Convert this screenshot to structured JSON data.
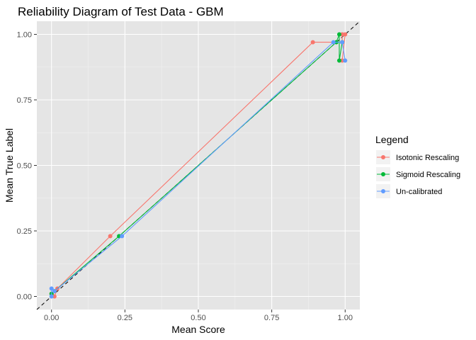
{
  "chart_data": {
    "type": "line",
    "title": "Reliability Diagram of Test Data - GBM",
    "xlabel": "Mean Score",
    "ylabel": "Mean True Label",
    "xlim": [
      -0.05,
      1.05
    ],
    "ylim": [
      -0.05,
      1.05
    ],
    "x_ticks": [
      0.0,
      0.25,
      0.5,
      0.75,
      1.0
    ],
    "x_tick_labels": [
      "0.00",
      "0.25",
      "0.50",
      "0.75",
      "1.00"
    ],
    "y_ticks": [
      0.0,
      0.25,
      0.5,
      0.75,
      1.0
    ],
    "y_tick_labels": [
      "0.00",
      "0.25",
      "0.50",
      "0.75",
      "1.00"
    ],
    "grid": true,
    "background": "#e5e5e5",
    "reference_line": {
      "style": "dashed",
      "color": "#000000",
      "from": [
        -0.05,
        -0.05
      ],
      "to": [
        1.05,
        1.05
      ]
    },
    "legend": {
      "title": "Legend",
      "position": "right"
    },
    "series": [
      {
        "name": "Isotonic Rescaling",
        "color": "#f8766d",
        "points": [
          [
            0.0,
            0.01
          ],
          [
            0.01,
            0.0
          ],
          [
            0.02,
            0.03
          ],
          [
            0.2,
            0.23
          ],
          [
            0.89,
            0.97
          ],
          [
            0.99,
            0.97
          ],
          [
            0.99,
            1.0
          ],
          [
            1.0,
            1.0
          ],
          [
            0.99,
            0.9
          ]
        ]
      },
      {
        "name": "Sigmoid Rescaling",
        "color": "#00ba38",
        "points": [
          [
            0.0,
            0.01
          ],
          [
            0.01,
            0.02
          ],
          [
            0.23,
            0.23
          ],
          [
            0.97,
            0.97
          ],
          [
            0.98,
            1.0
          ],
          [
            0.98,
            0.9
          ],
          [
            0.99,
            0.97
          ]
        ]
      },
      {
        "name": "Un-calibrated",
        "color": "#619cff",
        "points": [
          [
            0.0,
            0.0
          ],
          [
            0.0,
            0.03
          ],
          [
            0.01,
            0.02
          ],
          [
            0.24,
            0.23
          ],
          [
            0.96,
            0.97
          ],
          [
            0.99,
            0.97
          ],
          [
            1.0,
            0.9
          ]
        ]
      }
    ]
  }
}
